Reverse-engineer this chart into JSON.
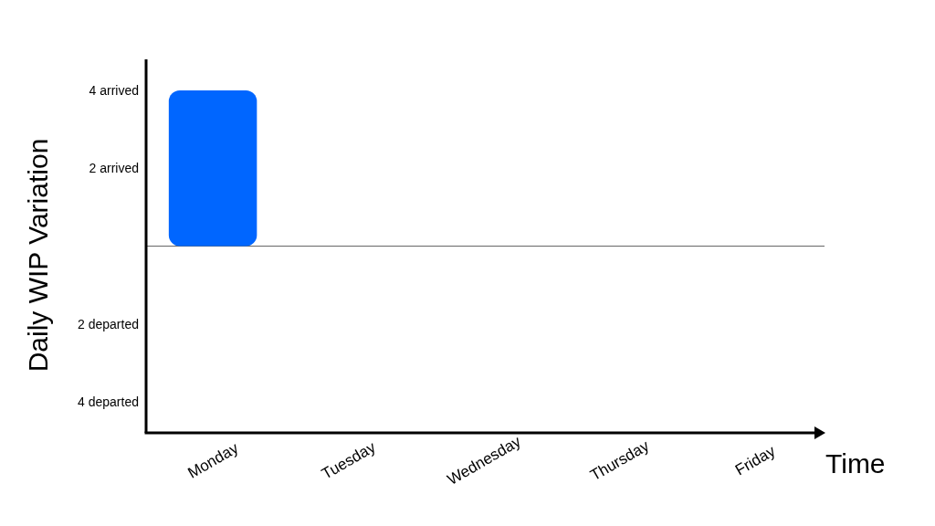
{
  "chart_data": {
    "type": "bar",
    "xlabel": "Time",
    "ylabel": "Daily WIP Variation",
    "categories": [
      "Monday",
      "Tuesday",
      "Wednesday",
      "Thursday",
      "Friday"
    ],
    "values": [
      4,
      null,
      null,
      null,
      null
    ],
    "color": "#0066ff",
    "ylim": [
      -4.8,
      4.8
    ],
    "yticks": [
      {
        "value": 4,
        "label": "4 arrived"
      },
      {
        "value": 2,
        "label": "2 arrived"
      },
      {
        "value": -2,
        "label": "2 departed"
      },
      {
        "value": -4,
        "label": "4 departed"
      }
    ],
    "ref_lines": [
      {
        "axis": "y",
        "value": 0,
        "color": "#666666"
      }
    ],
    "grid": false
  }
}
